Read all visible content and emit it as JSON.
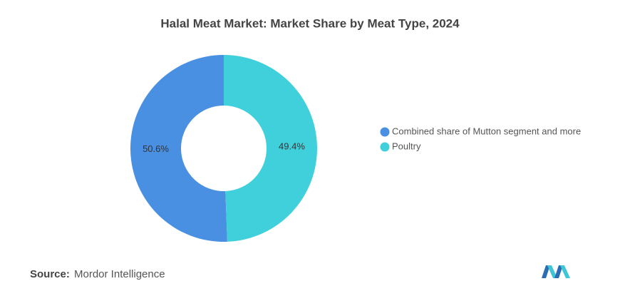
{
  "chart_data": {
    "type": "pie",
    "donut": true,
    "title": "Halal Meat Market: Market Share by Meat Type, 2024",
    "categories": [
      "Combined share of Mutton segment and more",
      "Poultry"
    ],
    "values": [
      50.6,
      49.4
    ],
    "value_labels": [
      "50.6%",
      "49.4%"
    ],
    "colors": [
      "#4a90e2",
      "#40d0dc"
    ],
    "legend": "right"
  },
  "source": {
    "label": "Source:",
    "text": "Mordor Intelligence"
  }
}
